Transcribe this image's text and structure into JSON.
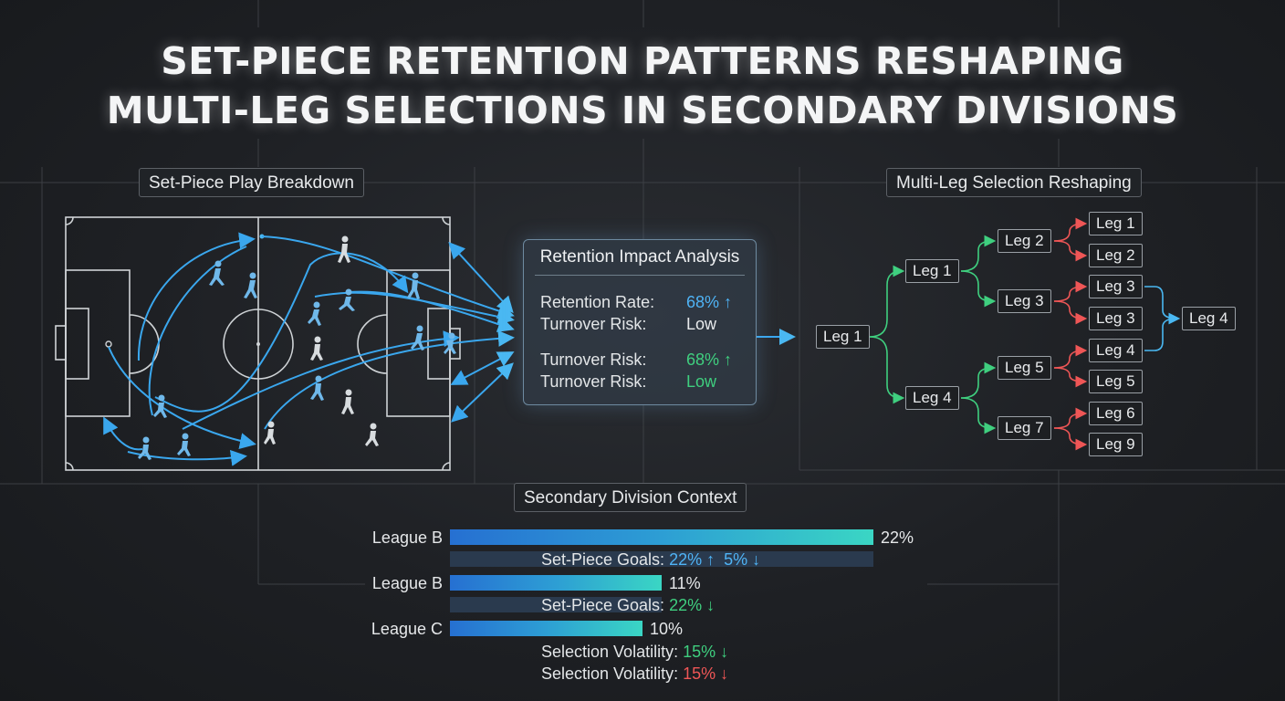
{
  "title": {
    "line1": "SET-PIECE RETENTION PATTERNS RESHAPING",
    "line2": "MULTI-LEG SELECTIONS IN SECONDARY DIVISIONS"
  },
  "set_piece": {
    "label": "Set-Piece Play Breakdown"
  },
  "analysis": {
    "title": "Retention Impact Analysis",
    "rows": [
      {
        "label": "Retention Rate:",
        "value": "68% ↑",
        "color": "blue"
      },
      {
        "label": "Turnover Risk:",
        "value": "Low",
        "color": "white"
      },
      {
        "label": "Turnover Risk:",
        "value": "68% ↑",
        "color": "green"
      },
      {
        "label": "Turnover Risk:",
        "value": "Low",
        "color": "green"
      }
    ]
  },
  "tree": {
    "label": "Multi-Leg Selection Reshaping",
    "nodes": {
      "root": "Leg 1",
      "a1": "Leg 1",
      "a2": "Leg 4",
      "b1": "Leg 2",
      "b2": "Leg 3",
      "b3": "Leg 5",
      "b4": "Leg 7",
      "c1": "Leg 1",
      "c2": "Leg 2",
      "c3": "Leg 3",
      "c4": "Leg 3",
      "c5": "Leg 4",
      "c6": "Leg 5",
      "c7": "Leg 6",
      "c8": "Leg 9",
      "d1": "Leg 4"
    }
  },
  "division": {
    "label": "Secondary Division Context",
    "bars": [
      {
        "league": "League B",
        "value": 22,
        "value_label": "22%"
      },
      {
        "league": "League B",
        "value": 11,
        "value_label": "11%"
      },
      {
        "league": "League C",
        "value": 10,
        "value_label": "10%"
      }
    ],
    "notes": {
      "n1_prefix": "Set-Piece Goals:",
      "n1_a": "22% ↑",
      "n1_b": "5% ↓",
      "n2_prefix": "Set-Piece Goals:",
      "n2_a": "22% ↓",
      "n3_prefix": "Selection Volatility:",
      "n3_a": "15% ↓",
      "n4_prefix": "Selection Volatility:",
      "n4_a": "15% ↓"
    }
  },
  "colors": {
    "accent_blue": "#4fb3f5",
    "positive_green": "#3fcf7f",
    "negative_red": "#ef5656",
    "pitch_line": "#d4d7da"
  }
}
